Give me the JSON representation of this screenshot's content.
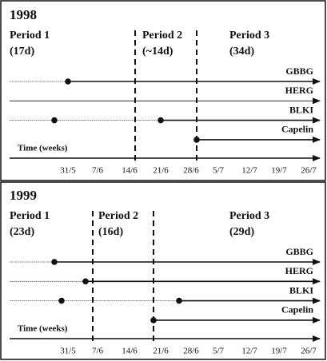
{
  "panels": [
    {
      "year": "1998",
      "periods": [
        {
          "name": "Period 1",
          "duration": "(17d)"
        },
        {
          "name": "Period 2",
          "duration": "(~14d)"
        },
        {
          "name": "Period 3",
          "duration": "(34d)"
        }
      ],
      "species": [
        "GBBG",
        "HERG",
        "BLKI",
        "Capelin"
      ],
      "axis_label": "Time (weeks)",
      "ticks": [
        "31/5",
        "7/6",
        "14/6",
        "21/6",
        "28/6",
        "5/7",
        "12/7",
        "19/7",
        "26/7"
      ]
    },
    {
      "year": "1999",
      "periods": [
        {
          "name": "Period 1",
          "duration": "(23d)"
        },
        {
          "name": "Period 2",
          "duration": "(16d)"
        },
        {
          "name": "Period 3",
          "duration": "(29d)"
        }
      ],
      "species": [
        "GBBG",
        "HERG",
        "BLKI",
        "Capelin"
      ],
      "axis_label": "Time (weeks)",
      "ticks": [
        "31/5",
        "7/6",
        "14/6",
        "21/6",
        "28/6",
        "5/7",
        "12/7",
        "19/7",
        "26/7"
      ]
    }
  ]
}
